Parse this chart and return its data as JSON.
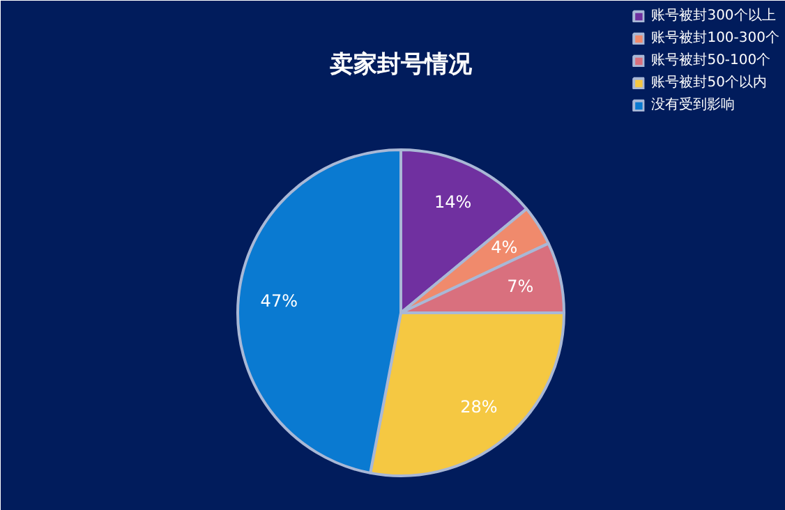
{
  "chart_data": {
    "type": "pie",
    "title": "卖家封号情况",
    "categories": [
      "账号被封300个以上",
      "账号被封100-300个",
      "账号被封50-100个",
      "账号被封50个以内",
      "没有受到影响"
    ],
    "values": [
      14,
      4,
      7,
      28,
      47
    ],
    "colors": [
      "#7030a0",
      "#f08a6c",
      "#d9707e",
      "#f5c842",
      "#0a7ad1"
    ],
    "value_labels": [
      "14%",
      "4%",
      "7%",
      "28%",
      "47%"
    ],
    "legend": "top right"
  }
}
